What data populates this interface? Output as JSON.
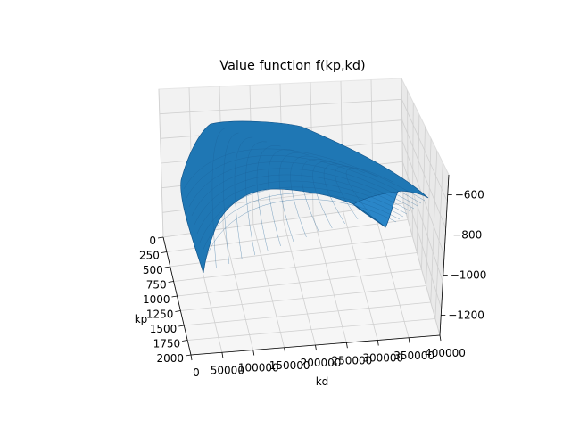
{
  "figure": {
    "title": "Value function f(kp,kd)"
  },
  "chart_data": {
    "type": "surface",
    "title": "Value function f(kp,kd)",
    "xlabel": "kd",
    "ylabel": "kp",
    "zlabel": "",
    "x_ticks": [
      "0",
      "50000",
      "100000",
      "150000",
      "200000",
      "250000",
      "300000",
      "350000",
      "400000"
    ],
    "y_ticks": [
      "0",
      "250",
      "500",
      "750",
      "1000",
      "1250",
      "1500",
      "1750",
      "2000"
    ],
    "z_ticks": [
      "−600",
      "−800",
      "−1000",
      "−1200"
    ],
    "xlim": [
      0,
      400000
    ],
    "ylim": [
      0,
      2000
    ],
    "zlim": [
      -1300,
      -500
    ],
    "grid": true,
    "surface_color": "#1f77b4",
    "edge_color": "#0d4f85",
    "surface_points": [
      {
        "kp": 0,
        "kd": 0,
        "f": -850
      },
      {
        "kp": 0,
        "kd": 400000,
        "f": -700
      },
      {
        "kp": 2000,
        "kd": 0,
        "f": -1250
      },
      {
        "kp": 2000,
        "kd": 400000,
        "f": -1100
      },
      {
        "kp": 700,
        "kd": 180000,
        "f": -560
      }
    ]
  }
}
